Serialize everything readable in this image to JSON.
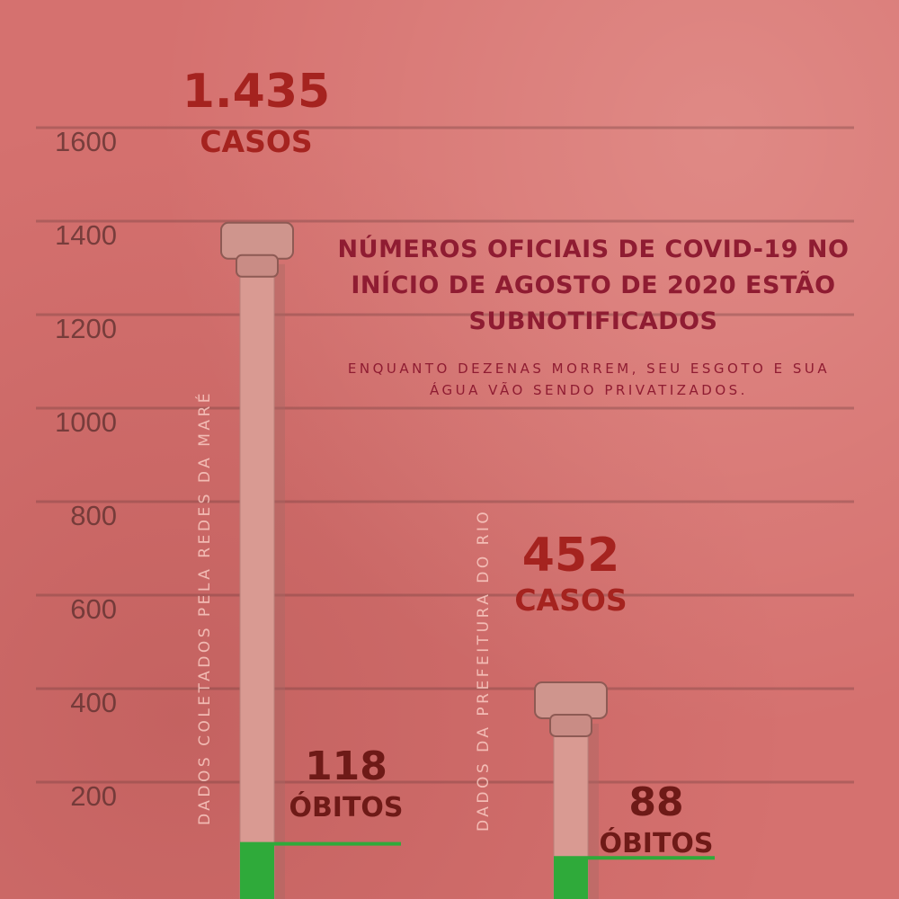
{
  "chart_data": {
    "type": "bar",
    "title": "NÚMEROS OFICIAIS DE COVID-19 NO INÍCIO DE AGOSTO DE 2020 ESTÃO SUBNOTIFICADOS",
    "subtitle": "ENQUANTO DEZENAS MORREM, SEU ESGOTO E SUA ÁGUA VÃO SENDO PRIVATIZADOS.",
    "ylim": [
      0,
      1700
    ],
    "yticks": [
      200,
      400,
      600,
      800,
      1000,
      1200,
      1400,
      1600
    ],
    "grid": true,
    "categories": [
      "DADOS COLETADOS PELA REDES DA MARÉ",
      "DADOS DA PREFEITURA DO RIO"
    ],
    "series": [
      {
        "name": "CASOS",
        "values": [
          1435,
          452
        ],
        "labels": [
          "1.435",
          "452"
        ]
      },
      {
        "name": "ÓBITOS",
        "values": [
          118,
          88
        ],
        "labels": [
          "118",
          "88"
        ]
      }
    ]
  },
  "colors": {
    "background": "#d5716f",
    "pipe": "#d99a92",
    "pipe_shadow": "#a86a64",
    "deaths_fill": "#2faa3a",
    "cases_text": "#a5231f",
    "deaths_text": "#6e1a17",
    "title_text": "#8f1c32",
    "tick_text": "#5a2d2c"
  }
}
